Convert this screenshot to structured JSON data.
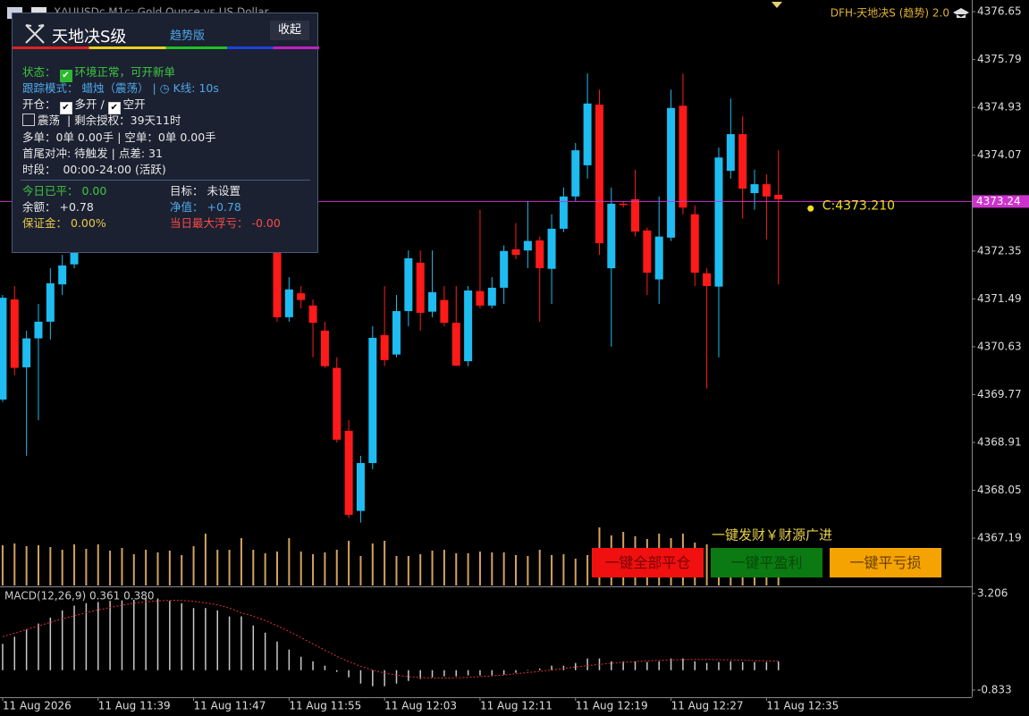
{
  "symbol": "XAUUSDc,M1c: Gold Ounce vs US Dollar",
  "indicator_label": "DFH-天地决S (趋势) 2.0",
  "panel": {
    "title": "天地决S级",
    "edition": "趋势版",
    "collapse": "收起",
    "status_label": "状态：",
    "status": "环境正常，可开新单",
    "track_label": "跟踪模式：",
    "track_mode": "蜡烛（震荡） |",
    "kline": "K线: 10s",
    "open_label": "开仓：",
    "long_open": "多开 /",
    "short_open": "空开",
    "range_mode": "震荡",
    "license": "| 剩余授权：39天11时",
    "positions": "多单：0单 0.00手 | 空单：0单 0.00手",
    "hedge": "首尾对冲: 待触发 | 点差: 31",
    "session": "时段：  00:00-24:00 (活跃)",
    "closed_label": "今日已平：",
    "closed": "0.00",
    "target_label": "目标：",
    "target": "未设置",
    "balance_label": "余额：",
    "balance": "+0.78",
    "equity_label": "净值：",
    "equity": "+0.78",
    "margin_label": "保证金：",
    "margin": "0.00%",
    "max_loss_label": "当日最大浮亏：",
    "max_loss": "-0.00"
  },
  "slogan": "一键发财￥财源广进",
  "buttons": [
    "一键全部平仓",
    "一键平盈利",
    "一键平亏损"
  ],
  "chart_data": [
    {
      "type": "candlestick",
      "x": [
        0,
        1,
        2,
        3,
        4,
        5,
        6,
        7,
        8,
        9,
        10,
        11,
        12,
        13,
        14,
        15,
        16,
        17,
        18,
        19,
        20,
        21,
        22,
        23,
        24,
        25,
        26,
        27,
        28,
        29,
        30,
        31,
        32,
        33,
        34,
        35,
        36,
        37,
        38,
        39,
        40,
        41,
        42,
        43,
        44,
        45,
        46,
        47,
        48,
        49,
        50,
        51,
        52,
        53,
        54,
        55,
        56,
        57,
        58,
        59,
        60,
        61,
        62,
        63,
        64,
        65
      ],
      "open": [
        4369.68,
        4371.48,
        4370.26,
        4370.78,
        4371.08,
        4371.75,
        4372.11,
        null,
        null,
        null,
        null,
        null,
        null,
        null,
        null,
        null,
        null,
        null,
        null,
        null,
        null,
        null,
        null,
        4372.53,
        4371.16,
        4371.59,
        4371.37,
        4370.92,
        4370.25,
        4369.12,
        4367.68,
        4368.54,
        4370.84,
        4370.49,
        4371.27,
        4372.14,
        4371.26,
        4371.47,
        4371.06,
        4370.37,
        4371.63,
        4371.37,
        4371.69,
        4372.38,
        4372.36,
        4372.54,
        4372.03,
        4372.75,
        4373.33,
        4373.89,
        4374.98,
        4372.04,
        4373.2,
        4373.28,
        4372.72,
        4371.84,
        4372.59,
        4374.96,
        4373.01,
        4371.95,
        4371.71,
        4373.79,
        4374.45,
        4373.39,
        4373.55,
        4373.36
      ],
      "high": [
        4371.56,
        4371.72,
        4370.92,
        4371.4,
        4372.04,
        4372.28,
        4372.53,
        null,
        null,
        null,
        null,
        null,
        null,
        null,
        null,
        null,
        null,
        null,
        null,
        null,
        null,
        null,
        null,
        4372.61,
        4371.88,
        4371.72,
        4371.48,
        4371.08,
        4370.44,
        4369.31,
        4368.67,
        4371.0,
        4371.72,
        4371.56,
        4372.36,
        4372.36,
        4372.36,
        4371.72,
        4371.72,
        4371.72,
        4373.09,
        4371.88,
        4372.45,
        4372.85,
        4373.25,
        4372.61,
        4373.01,
        4373.49,
        4374.29,
        4375.54,
        4375.25,
        4373.49,
        4373.25,
        4373.81,
        4372.77,
        4373.33,
        4375.25,
        4375.54,
        4373.17,
        4372.04,
        4374.21,
        4375.09,
        4374.77,
        4373.81,
        4373.73,
        4374.16
      ],
      "low": [
        4369.64,
        4370.12,
        4368.67,
        4369.31,
        4370.76,
        4371.56,
        4372.04,
        null,
        null,
        null,
        null,
        null,
        null,
        null,
        null,
        null,
        null,
        null,
        null,
        null,
        null,
        null,
        null,
        4371.08,
        4371.08,
        4371.32,
        4370.44,
        4370.25,
        4368.91,
        4367.55,
        4367.47,
        4368.43,
        4370.28,
        4370.44,
        4371.0,
        4370.92,
        4371.16,
        4371.0,
        4370.28,
        4370.28,
        4371.32,
        4371.32,
        4371.4,
        4372.2,
        4372.04,
        4371.08,
        4371.4,
        4372.69,
        4373.25,
        4373.65,
        4372.28,
        4370.63,
        4373.13,
        4372.61,
        4371.56,
        4371.4,
        4372.53,
        4373.01,
        4371.72,
        4369.88,
        4370.44,
        4373.65,
        4372.93,
        4373.09,
        4372.56,
        4371.75
      ],
      "close": [
        4371.51,
        4370.25,
        4370.78,
        4371.08,
        4371.77,
        4372.09,
        4372.45,
        null,
        null,
        null,
        null,
        null,
        null,
        null,
        null,
        null,
        null,
        null,
        null,
        null,
        null,
        null,
        null,
        4371.16,
        4371.66,
        4371.47,
        4371.06,
        4370.28,
        4368.96,
        4367.61,
        4368.54,
        4370.79,
        4370.39,
        4371.27,
        4372.22,
        4371.24,
        4371.61,
        4371.06,
        4370.29,
        4371.64,
        4371.37,
        4371.69,
        4372.35,
        4372.28,
        4372.53,
        4372.04,
        4372.75,
        4373.33,
        4374.16,
        4375.0,
        4372.49,
        4373.2,
        4373.18,
        4372.7,
        4371.96,
        4372.61,
        4374.92,
        4373.13,
        4371.96,
        4371.72,
        4374.03,
        4374.45,
        4373.47,
        4373.55,
        4373.33,
        4373.28
      ],
      "up_color": "#1ebcf0",
      "down_color": "#ff1a1a",
      "volume": [
        45,
        47,
        44,
        45,
        43,
        40,
        46,
        41,
        46,
        39,
        42,
        35,
        40,
        37,
        39,
        34,
        44,
        58,
        40,
        40,
        53,
        40,
        36,
        38,
        53,
        38,
        35,
        37,
        40,
        50,
        33,
        47,
        50,
        33,
        33,
        35,
        39,
        40,
        36,
        36,
        38,
        37,
        37,
        34,
        33,
        40,
        34,
        35,
        30,
        34,
        65,
        56,
        60,
        55,
        52,
        58,
        53,
        58,
        48,
        46,
        36,
        38,
        33,
        29,
        27,
        24
      ],
      "volume_color": "#d4a25e",
      "volume_lim": [
        0,
        100
      ],
      "xlim": [
        -0.22,
        81.2
      ],
      "ylim": [
        4366.34,
        4376.86
      ],
      "yticks": [
        4376.65,
        4375.79,
        4374.93,
        4374.07,
        4372.35,
        4371.49,
        4370.63,
        4369.77,
        4368.91,
        4368.05,
        4367.19
      ],
      "xticks": [
        {
          "value": 0,
          "label": "11 Aug 2026"
        },
        {
          "value": 8,
          "label": "11 Aug 11:39"
        },
        {
          "value": 16,
          "label": "11 Aug 11:47"
        },
        {
          "value": 24,
          "label": "11 Aug 11:55"
        },
        {
          "value": 32,
          "label": "11 Aug 12:03"
        },
        {
          "value": 40,
          "label": "11 Aug 12:11"
        },
        {
          "value": 48,
          "label": "11 Aug 12:19"
        },
        {
          "value": 56,
          "label": "11 Aug 12:27"
        },
        {
          "value": 64,
          "label": "11 Aug 12:35"
        }
      ],
      "current_price": 4373.24,
      "price_line_color": "#cc33cc",
      "close_marker": {
        "value": 4373.21,
        "label": "C:4373.210"
      }
    },
    {
      "type": "macd",
      "title": "MACD(12,26,9) 0.361 0.380",
      "histogram": [
        1.1,
        1.4,
        1.7,
        1.95,
        2.2,
        2.5,
        2.7,
        2.8,
        2.85,
        2.9,
        2.92,
        2.95,
        3.0,
        3.0,
        2.9,
        2.8,
        2.6,
        2.6,
        2.5,
        2.25,
        2.25,
        1.87,
        1.57,
        1.2,
        0.86,
        0.56,
        0.37,
        0.19,
        -0.07,
        -0.3,
        -0.56,
        -0.67,
        -0.67,
        -0.56,
        -0.45,
        -0.37,
        -0.3,
        -0.26,
        -0.26,
        -0.22,
        -0.22,
        -0.22,
        -0.19,
        -0.11,
        -0.02,
        0.07,
        0.19,
        0.19,
        0.3,
        0.49,
        0.49,
        0.37,
        0.37,
        0.37,
        0.34,
        0.37,
        0.49,
        0.49,
        0.37,
        0.3,
        0.34,
        0.37,
        0.34,
        0.34,
        0.34,
        0.361
      ],
      "signal": [
        1.4,
        1.55,
        1.7,
        1.85,
        2.0,
        2.15,
        2.28,
        2.4,
        2.52,
        2.62,
        2.72,
        2.8,
        2.86,
        2.9,
        2.92,
        2.92,
        2.88,
        2.82,
        2.74,
        2.6,
        2.4,
        2.26,
        2.08,
        1.86,
        1.62,
        1.36,
        1.1,
        0.84,
        0.58,
        0.36,
        0.16,
        0.0,
        -0.12,
        -0.21,
        -0.27,
        -0.31,
        -0.33,
        -0.33,
        -0.32,
        -0.3,
        -0.27,
        -0.24,
        -0.2,
        -0.15,
        -0.1,
        -0.05,
        0.01,
        0.07,
        0.13,
        0.19,
        0.24,
        0.29,
        0.33,
        0.36,
        0.39,
        0.41,
        0.43,
        0.44,
        0.45,
        0.45,
        0.44,
        0.43,
        0.42,
        0.4,
        0.39,
        0.38
      ],
      "histogram_color": "#c8c8c8",
      "signal_color": "#e03030",
      "ylim": [
        -1.132,
        3.468
      ],
      "yticks": [
        3.206,
        -0.833
      ]
    }
  ]
}
